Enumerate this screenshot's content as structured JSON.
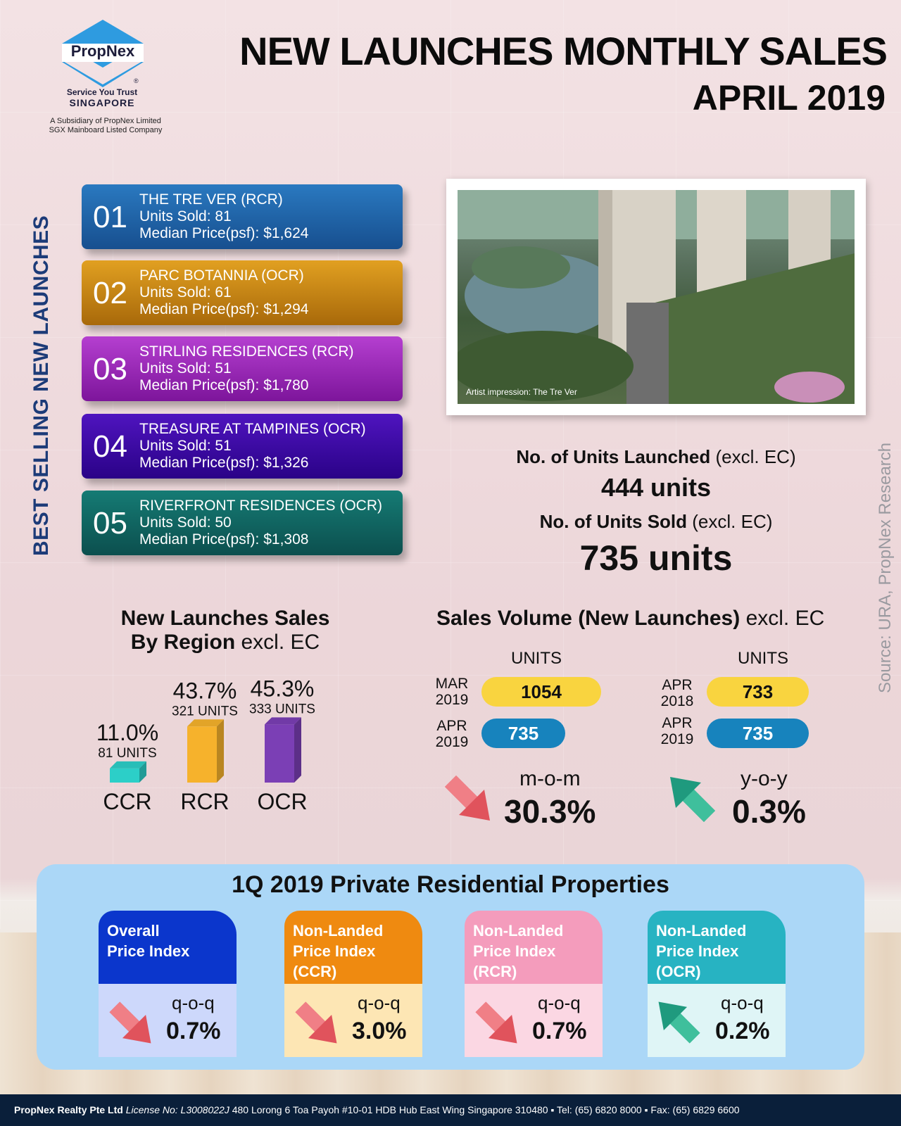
{
  "header": {
    "brand": "PropNex",
    "reg_mark": "®",
    "tagline": "Service You Trust",
    "country": "SINGAPORE",
    "sub_line1": "A Subsidiary of PropNex Limited",
    "sub_line2": "SGX Mainboard Listed Company",
    "title": "NEW LAUNCHES MONTHLY SALES",
    "subtitle": "APRIL 2019"
  },
  "best_selling": {
    "label": "BEST SELLING NEW LAUNCHES",
    "items": [
      {
        "rank": "01",
        "name": "THE TRE VER (RCR)",
        "units": "Units Sold: 81",
        "price": "Median Price(psf): $1,624"
      },
      {
        "rank": "02",
        "name": "PARC BOTANNIA (OCR)",
        "units": "Units Sold: 61",
        "price": "Median Price(psf): $1,294"
      },
      {
        "rank": "03",
        "name": "STIRLING RESIDENCES (RCR)",
        "units": "Units Sold: 51",
        "price": "Median Price(psf): $1,780"
      },
      {
        "rank": "04",
        "name": "TREASURE AT TAMPINES (OCR)",
        "units": "Units Sold: 51",
        "price": "Median Price(psf): $1,326"
      },
      {
        "rank": "05",
        "name": "RIVERFRONT RESIDENCES (OCR)",
        "units": "Units Sold: 50",
        "price": "Median Price(psf): $1,308"
      }
    ]
  },
  "photo": {
    "caption": "Artist impression: The Tre Ver"
  },
  "units": {
    "launched_label_bold": "No. of Units Launched",
    "launched_label_rest": " (excl. EC)",
    "launched_value": "444 units",
    "sold_label_bold": "No. of Units Sold",
    "sold_label_rest": " (excl. EC)",
    "sold_value": "735 units"
  },
  "source": "Source: URA, PropNex Research",
  "chart_data": [
    {
      "type": "bar",
      "title": "New Launches Sales By Region excl. EC",
      "title_bold1": "New Launches Sales",
      "title_bold2": "By Region",
      "title_light": " excl. EC",
      "categories": [
        "CCR",
        "RCR",
        "OCR"
      ],
      "values": [
        11.0,
        43.7,
        45.3
      ],
      "value_labels": [
        "11.0%",
        "43.7%",
        "45.3%"
      ],
      "unit_labels": [
        "81 UNITS",
        "321 UNITS",
        "333 UNITS"
      ],
      "units": [
        81,
        321,
        333
      ],
      "colors": [
        "#2ccfc8",
        "#f6b22c",
        "#7b3fb5"
      ],
      "ylim": [
        0,
        50
      ]
    },
    {
      "type": "bar",
      "title_bold": "Sales Volume (New Launches)",
      "title_light": " excl. EC",
      "units_header": "UNITS",
      "mom": {
        "categories": [
          "MAR 2019",
          "APR 2019"
        ],
        "values": [
          1054,
          735
        ],
        "label": "m-o-m",
        "change": "30.3%",
        "direction": "down"
      },
      "yoy": {
        "categories": [
          "APR 2018",
          "APR 2019"
        ],
        "values": [
          733,
          735
        ],
        "label": "y-o-y",
        "change": "0.3%",
        "direction": "up"
      }
    }
  ],
  "q1": {
    "title": "1Q 2019 Private Residential Properties",
    "indices": [
      {
        "line1": "Overall",
        "line2": "Price Index",
        "line3": "",
        "q": "q-o-q",
        "value": "0.7%",
        "direction": "down",
        "tab_color": "#0b36cc",
        "body_color": "#cdd8fb"
      },
      {
        "line1": "Non-Landed",
        "line2": "Price Index",
        "line3": "(CCR)",
        "q": "q-o-q",
        "value": "3.0%",
        "direction": "down",
        "tab_color": "#ef8a10",
        "body_color": "#fde6b4"
      },
      {
        "line1": "Non-Landed",
        "line2": "Price Index",
        "line3": "(RCR)",
        "q": "q-o-q",
        "value": "0.7%",
        "direction": "down",
        "tab_color": "#f49cbc",
        "body_color": "#fbd7e3"
      },
      {
        "line1": "Non-Landed",
        "line2": "Price Index",
        "line3": "(OCR)",
        "q": "q-o-q",
        "value": "0.2%",
        "direction": "up",
        "tab_color": "#27b3c2",
        "body_color": "#dff5f6"
      }
    ]
  },
  "footer": {
    "company": "PropNex Realty Pte Ltd",
    "license": "License No: L3008022J",
    "address": "480 Lorong 6 Toa Payoh #10-01 HDB Hub East Wing Singapore 310480",
    "tel": "▪ Tel: (65) 6820 8000",
    "fax": "▪ Fax: (65) 6829 6600"
  }
}
